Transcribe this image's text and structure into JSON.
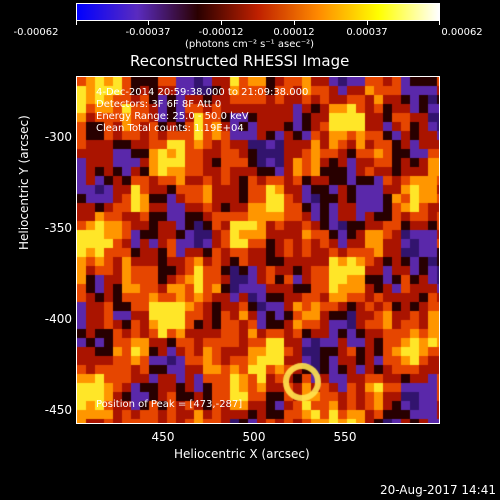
{
  "colorbar": {
    "tick_labels": [
      "-0.00062",
      "-0.00037",
      "-0.00012",
      "0.00012",
      "0.00037",
      "0.00062"
    ],
    "units_label": "(photons cm⁻² s⁻¹ asec⁻²)",
    "gradient_colors": [
      "#0000ff",
      "#5a2bbf",
      "#2a0000",
      "#bf2000",
      "#ff8a00",
      "#ffff00",
      "#ffffff"
    ]
  },
  "title": "Reconstructed RHESSI Image",
  "overlay": {
    "line1": "4-Dec-2014 20:59:38.000 to 21:09:38.000",
    "line2": "Detectors: 3F 6F 8F  Att 0",
    "line3": "Energy Range: 25.0 - 50.0 keV",
    "line4": "Clean    Total counts: 1.19E+04",
    "peak": "Position of Peak = [473,-287]"
  },
  "axes": {
    "xlabel": "Heliocentric X (arcsec)",
    "ylabel": "Heliocentric Y (arcsec)",
    "x_ticks": [
      "450",
      "500",
      "550"
    ],
    "y_ticks": [
      "-300",
      "-350",
      "-400",
      "-450"
    ]
  },
  "timestamp": "20-Aug-2017 14:41"
}
